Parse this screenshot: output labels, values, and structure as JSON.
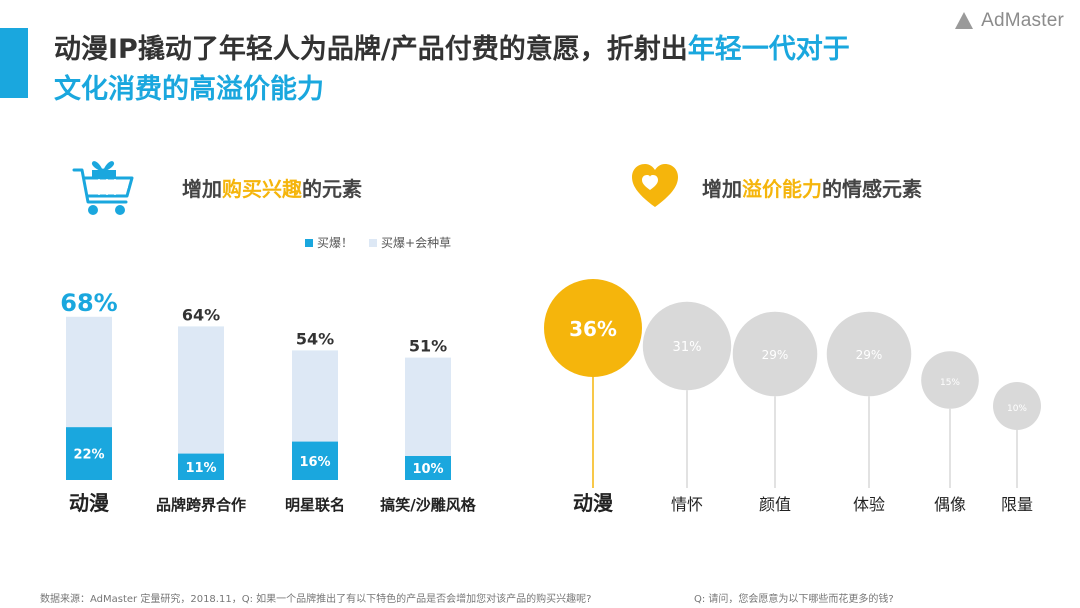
{
  "header": {
    "title_line1_prefix": "动漫IP撬动了年轻人为品牌/产品付费的意愿，折射出",
    "title_line1_highlight": "年轻一代对于",
    "title_line2_highlight": "文化消费的高溢价能力",
    "logo_text": "AdMaster"
  },
  "left_section": {
    "heading_prefix": "增加",
    "heading_highlight": "购买兴趣",
    "heading_suffix": "的元素",
    "icon": "shopping-cart-gift-icon"
  },
  "right_section": {
    "heading_prefix": "增加",
    "heading_highlight": "溢价能力",
    "heading_suffix": "的情感元素",
    "icon": "heart-icon"
  },
  "footnotes": {
    "left": "数据来源：AdMaster 定量研究，2018.11，Q: 如果一个品牌推出了有以下特色的产品是否会增加您对该产品的购买兴趣呢?",
    "right": "Q: 请问，您会愿意为以下哪些而花更多的钱?"
  },
  "colors": {
    "accent_blue": "#1aa7de",
    "light_blue": "#dde8f5",
    "yellow": "#f5b50c",
    "bubble_gray": "#d9d9d9",
    "bubble_text": "#ffffff"
  },
  "chart_data": [
    {
      "type": "bar",
      "categories": [
        "动漫",
        "品牌跨界合作",
        "明星联名",
        "搞笑/沙雕风格"
      ],
      "series": [
        {
          "name": "买爆！",
          "values": [
            22,
            11,
            16,
            10
          ]
        },
        {
          "name": "买爆+会种草",
          "values": [
            68,
            64,
            54,
            51
          ]
        }
      ],
      "total_labels": [
        "68%",
        "64%",
        "54%",
        "51%"
      ],
      "inner_labels": [
        "22%",
        "11%",
        "16%",
        "10%"
      ],
      "ylim": [
        0,
        70
      ],
      "legend_position": "top-right",
      "grid": false
    },
    {
      "type": "scatter",
      "categories": [
        "动漫",
        "情怀",
        "颜值",
        "体验",
        "偶像",
        "限量"
      ],
      "values": [
        36,
        31,
        29,
        29,
        15,
        10
      ],
      "labels": [
        "36%",
        "31%",
        "29%",
        "29%",
        "15%",
        "10%"
      ],
      "highlight_index": 0,
      "grid": false
    }
  ]
}
